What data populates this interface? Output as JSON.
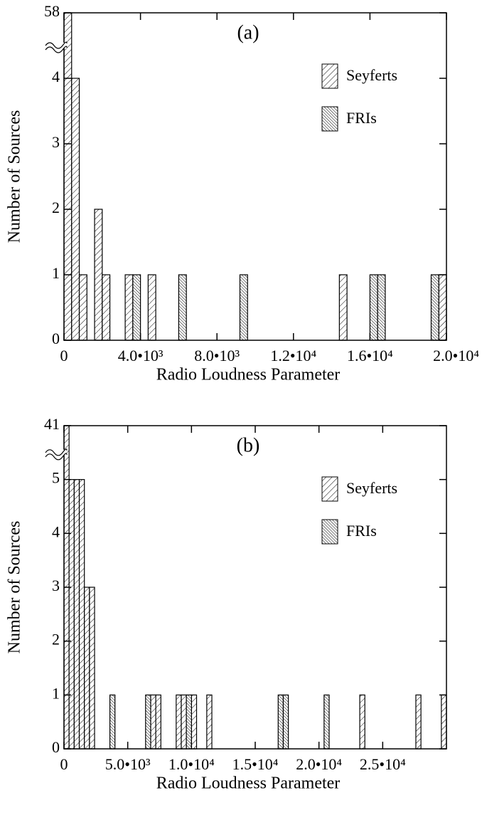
{
  "chart_data": [
    {
      "type": "histogram",
      "annotation": "(a)",
      "xlabel": "Radio Loudness Parameter",
      "ylabel": "Number of Sources",
      "bins": [
        0,
        400,
        800,
        1200,
        1600,
        2000,
        2400,
        2800,
        3200,
        3600,
        4000,
        4400,
        4800,
        5200,
        5600,
        6000,
        6400,
        6800,
        7200,
        7600,
        8000,
        8400,
        8800,
        9200,
        9600,
        10000,
        10400,
        10800,
        11200,
        11600,
        12000,
        12400,
        12800,
        13200,
        13600,
        14000,
        14400,
        14800,
        15200,
        15600,
        16000,
        16400,
        16800,
        17200,
        17600,
        18000,
        18400,
        18800,
        19200,
        19600,
        20000
      ],
      "series": [
        {
          "name": "Seyferts",
          "color": "#000000",
          "hatch": "/",
          "values": [
            58,
            4,
            1,
            0,
            2,
            1,
            0,
            0,
            1,
            0,
            0,
            1,
            0,
            0,
            0,
            0,
            0,
            0,
            0,
            0,
            0,
            0,
            0,
            0,
            0,
            0,
            0,
            0,
            0,
            0,
            0,
            0,
            0,
            0,
            0,
            0,
            1,
            0,
            0,
            0,
            0,
            0,
            0,
            0,
            0,
            0,
            0,
            0,
            0,
            1
          ]
        },
        {
          "name": "FRIs",
          "color": "#000000",
          "hatch": "\\",
          "values": [
            0,
            0,
            0,
            0,
            0,
            0,
            0,
            0,
            0,
            1,
            0,
            0,
            0,
            0,
            0,
            1,
            0,
            0,
            0,
            0,
            0,
            0,
            0,
            1,
            0,
            0,
            0,
            0,
            0,
            0,
            0,
            0,
            0,
            0,
            0,
            0,
            0,
            0,
            0,
            0,
            1,
            1,
            0,
            0,
            0,
            0,
            0,
            0,
            1,
            0
          ]
        }
      ],
      "xlim": [
        0,
        20000
      ],
      "xticks": [
        0,
        {
          "value": 4000,
          "label": "4.0•10³"
        },
        {
          "value": 8000,
          "label": "8.0•10³"
        },
        {
          "value": 12000,
          "label": "1.2•10⁴"
        },
        {
          "value": 16000,
          "label": "1.6•10⁴"
        },
        {
          "value": 20000,
          "label": "2.0•10⁴"
        }
      ],
      "ylim": [
        0,
        5
      ],
      "yticks": [
        0,
        1,
        2,
        3,
        4,
        58
      ],
      "axis_break": true,
      "legend": "upper right"
    },
    {
      "type": "histogram",
      "annotation": "(b)",
      "xlabel": "Radio Loudness Parameter",
      "ylabel": "Number of Sources",
      "bins": [
        0,
        400,
        800,
        1200,
        1600,
        2000,
        2400,
        2800,
        3200,
        3600,
        4000,
        4400,
        4800,
        5200,
        5600,
        6000,
        6400,
        6800,
        7200,
        7600,
        8000,
        8400,
        8800,
        9200,
        9600,
        10000,
        10400,
        10800,
        11200,
        11600,
        12000,
        12400,
        12800,
        13200,
        13600,
        14000,
        14400,
        14800,
        15200,
        15600,
        16000,
        16400,
        16800,
        17200,
        17600,
        18000,
        18400,
        18800,
        19200,
        19600,
        20000,
        20400,
        20800,
        21200,
        21600,
        22000,
        22400,
        22800,
        23200,
        23600,
        24000,
        24400,
        24800,
        25200,
        25600,
        26000,
        26400,
        26800,
        27200,
        27600,
        28000,
        28400,
        28800,
        29200,
        29600,
        30000
      ],
      "series": [
        {
          "name": "Seyferts",
          "color": "#000000",
          "hatch": "/",
          "values": [
            41,
            5,
            5,
            5,
            3,
            3,
            0,
            0,
            0,
            0,
            0,
            0,
            0,
            0,
            0,
            0,
            0,
            1,
            1,
            0,
            0,
            0,
            1,
            1,
            0,
            1,
            0,
            0,
            1,
            0,
            0,
            0,
            0,
            0,
            0,
            0,
            0,
            0,
            0,
            0,
            0,
            0,
            0,
            0,
            0,
            0,
            0,
            0,
            0,
            0,
            0,
            0,
            0,
            0,
            0,
            0,
            0,
            0,
            1,
            0,
            0,
            0,
            0,
            0,
            0,
            0,
            0,
            0,
            0,
            1,
            0,
            0,
            0,
            0,
            1
          ]
        },
        {
          "name": "FRIs",
          "color": "#000000",
          "hatch": "\\",
          "values": [
            0,
            0,
            0,
            0,
            0,
            0,
            0,
            0,
            0,
            1,
            0,
            0,
            0,
            0,
            0,
            0,
            1,
            0,
            0,
            0,
            0,
            0,
            0,
            0,
            1,
            0,
            0,
            0,
            0,
            0,
            0,
            0,
            0,
            0,
            0,
            0,
            0,
            0,
            0,
            0,
            0,
            0,
            1,
            1,
            0,
            0,
            0,
            0,
            0,
            0,
            0,
            1,
            0,
            0,
            0,
            0,
            0,
            0,
            0,
            0,
            0,
            0,
            0,
            0,
            0,
            0,
            0,
            0,
            0,
            0,
            0,
            0,
            0,
            0,
            0
          ]
        }
      ],
      "xlim": [
        0,
        30000
      ],
      "xticks": [
        0,
        {
          "value": 5000,
          "label": "5.0•10³"
        },
        {
          "value": 10000,
          "label": "1.0•10⁴"
        },
        {
          "value": 15000,
          "label": "1.5•10⁴"
        },
        {
          "value": 20000,
          "label": "2.0•10⁴"
        },
        {
          "value": 25000,
          "label": "2.5•10⁴"
        }
      ],
      "ylim": [
        0,
        6
      ],
      "yticks": [
        0,
        1,
        2,
        3,
        4,
        5,
        41
      ],
      "axis_break": true,
      "legend": "upper right"
    }
  ]
}
